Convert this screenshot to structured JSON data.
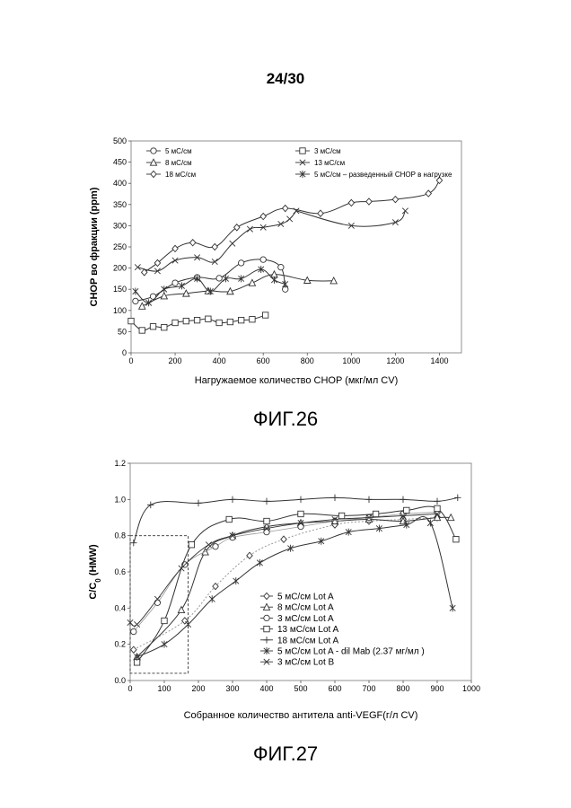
{
  "page_number": "24/30",
  "chart_data": [
    {
      "type": "line",
      "caption": "ФИГ.26",
      "xlabel": "Нагружаемое количество CHOP (мкг/мл CV)",
      "ylabel": "CHOP во фракции (ppm)",
      "xlim": [
        0,
        1500
      ],
      "ylim": [
        0,
        500
      ],
      "x_ticks": [
        0,
        200,
        400,
        600,
        800,
        1000,
        1200,
        1400
      ],
      "y_ticks": [
        0,
        50,
        100,
        150,
        200,
        250,
        300,
        350,
        400,
        450,
        500
      ],
      "grid": false,
      "legend_position": "top",
      "series": [
        {
          "name": "5 мС/см",
          "marker": "circle",
          "x": [
            20,
            100,
            200,
            300,
            400,
            500,
            600,
            680,
            700
          ],
          "y": [
            122,
            133,
            165,
            178,
            176,
            212,
            220,
            202,
            150
          ]
        },
        {
          "name": "3 мС/см",
          "marker": "square",
          "x": [
            0,
            50,
            100,
            150,
            200,
            250,
            300,
            350,
            400,
            450,
            500,
            550,
            610
          ],
          "y": [
            75,
            53,
            62,
            60,
            71,
            75,
            77,
            80,
            71,
            73,
            77,
            79,
            89
          ]
        },
        {
          "name": "8 мС/см",
          "marker": "triangle",
          "x": [
            50,
            150,
            250,
            350,
            450,
            550,
            650,
            800,
            920
          ],
          "y": [
            110,
            134,
            140,
            146,
            145,
            165,
            185,
            171,
            170
          ]
        },
        {
          "name": "13 мС/см",
          "marker": "x",
          "x": [
            30,
            120,
            200,
            300,
            380,
            460,
            540,
            600,
            680,
            720,
            750
          ],
          "y": [
            202,
            193,
            218,
            225,
            215,
            258,
            292,
            296,
            304,
            316,
            335
          ]
        },
        {
          "name": "18 мС/см",
          "marker": "diamond",
          "x": [
            60,
            120,
            200,
            280,
            380,
            480,
            600,
            700,
            860,
            1000,
            1080,
            1200,
            1350,
            1400
          ],
          "y": [
            190,
            212,
            246,
            260,
            250,
            296,
            322,
            341,
            329,
            354,
            357,
            362,
            376,
            407
          ]
        },
        {
          "name": "5 мС/см – разведенный CHOP в нагрузке",
          "marker": "star",
          "x": [
            20,
            80,
            150,
            230,
            300,
            360,
            430,
            500,
            590,
            650,
            700
          ],
          "y": [
            145,
            118,
            150,
            158,
            175,
            145,
            175,
            175,
            197,
            172,
            162
          ]
        }
      ],
      "extra_18_tail": {
        "x": [
          1000,
          1200,
          1245
        ],
        "y": [
          300,
          308,
          335
        ]
      }
    },
    {
      "type": "line",
      "caption": "ФИГ.27",
      "xlabel": "Собранное количество антитела anti-VEGF(г/л CV)",
      "ylabel": "C/C",
      "ylabel_sub": "0",
      "ylabel_suffix": " (HMW)",
      "xlim": [
        0,
        1000
      ],
      "ylim": [
        0,
        1.2
      ],
      "x_ticks": [
        0,
        100,
        200,
        300,
        400,
        500,
        600,
        700,
        800,
        900,
        1000
      ],
      "y_ticks": [
        "0.0",
        "0.2",
        "0.4",
        "0.6",
        "0.8",
        "1.0",
        "1.2"
      ],
      "grid": false,
      "legend_position": "bottom-right",
      "highlight_box": {
        "x": [
          0,
          170
        ],
        "y": [
          0.04,
          0.8
        ]
      },
      "series": [
        {
          "name": "5 мС/см  Lot A",
          "marker": "diamond",
          "x": [
            10,
            160,
            250,
            350,
            450,
            600,
            700,
            800,
            900
          ],
          "y": [
            0.17,
            0.33,
            0.52,
            0.69,
            0.78,
            0.86,
            0.88,
            0.89,
            0.9
          ]
        },
        {
          "name": "8 мС/см  Lot A",
          "marker": "triangle",
          "x": [
            20,
            150,
            220,
            300,
            400,
            500,
            600,
            700,
            800,
            900,
            940
          ],
          "y": [
            0.13,
            0.39,
            0.71,
            0.8,
            0.85,
            0.87,
            0.88,
            0.89,
            0.88,
            0.9,
            0.9
          ]
        },
        {
          "name": "3 мС/см  Lot A",
          "marker": "circle",
          "x": [
            10,
            80,
            160,
            250,
            300,
            400,
            500,
            600,
            700,
            800,
            900
          ],
          "y": [
            0.27,
            0.43,
            0.64,
            0.74,
            0.79,
            0.82,
            0.85,
            0.88,
            0.9,
            0.92,
            0.93
          ]
        },
        {
          "name": "13 мС/см  Lot A",
          "marker": "square",
          "x": [
            20,
            100,
            180,
            290,
            400,
            500,
            620,
            720,
            810,
            900,
            955
          ],
          "y": [
            0.1,
            0.33,
            0.75,
            0.89,
            0.88,
            0.92,
            0.91,
            0.92,
            0.94,
            0.95,
            0.78
          ]
        },
        {
          "name": "18 мС/см  Lot A",
          "marker": "plus",
          "x": [
            10,
            60,
            200,
            300,
            400,
            500,
            600,
            700,
            800,
            900,
            960
          ],
          "y": [
            0.76,
            0.97,
            0.98,
            1.0,
            0.99,
            1.0,
            1.01,
            1.0,
            1.0,
            0.99,
            1.01
          ]
        },
        {
          "name": "5 мС/см  Lot A - dil Mab (2.37 мг/мл  )",
          "marker": "star",
          "x": [
            20,
            100,
            170,
            240,
            310,
            380,
            470,
            560,
            640,
            730,
            810,
            880,
            945
          ],
          "y": [
            0.13,
            0.2,
            0.31,
            0.45,
            0.55,
            0.65,
            0.73,
            0.77,
            0.82,
            0.84,
            0.86,
            0.87,
            0.4
          ]
        },
        {
          "name": "3 мС/см  Lot B",
          "marker": "x",
          "x": [
            0,
            20,
            80,
            150,
            230,
            300,
            400,
            500,
            600,
            700,
            800,
            900
          ],
          "y": [
            0.32,
            0.31,
            0.45,
            0.62,
            0.75,
            0.8,
            0.84,
            0.87,
            0.89,
            0.9,
            0.91,
            0.92
          ]
        }
      ]
    }
  ]
}
